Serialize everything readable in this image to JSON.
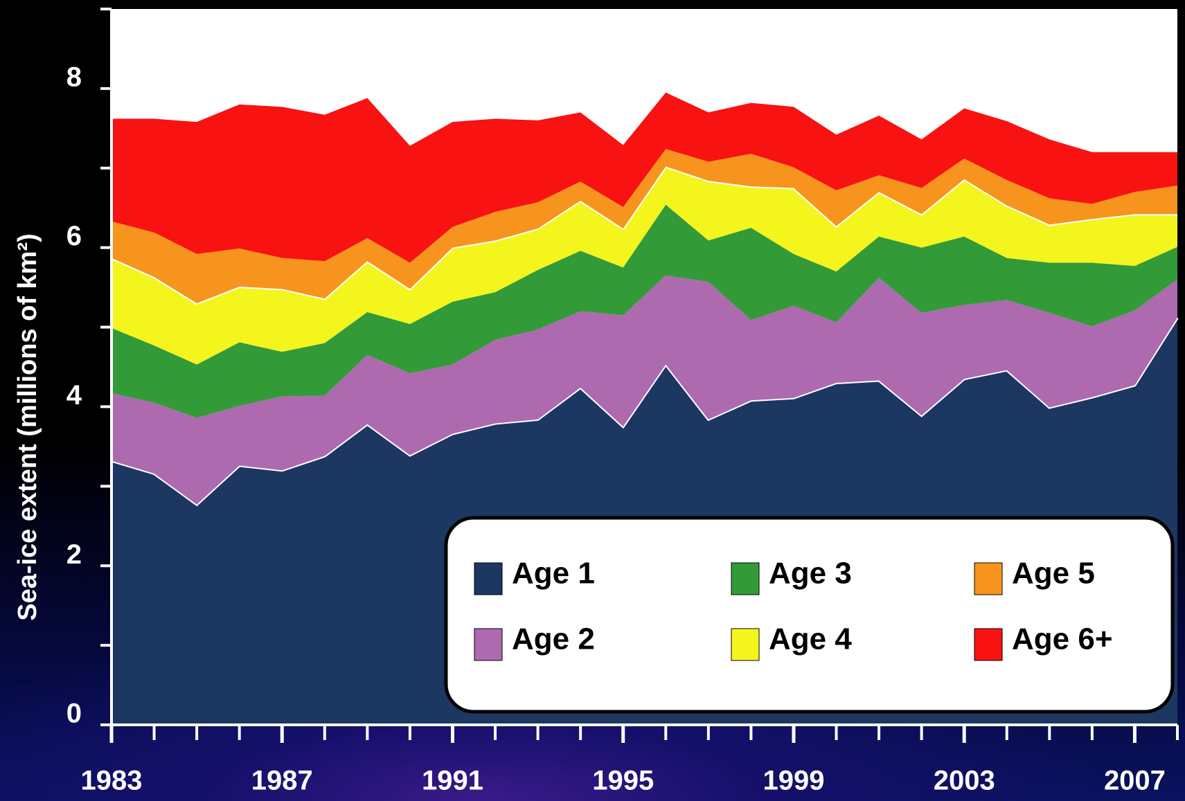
{
  "chart_data": {
    "type": "stacked-area",
    "y_label": "Sea-ice extent (millions of km²)",
    "x": [
      1983,
      1984,
      1985,
      1986,
      1987,
      1988,
      1989,
      1990,
      1991,
      1992,
      1993,
      1994,
      1995,
      1996,
      1997,
      1998,
      1999,
      2000,
      2001,
      2002,
      2003,
      2004,
      2005,
      2006,
      2007,
      2008
    ],
    "series": [
      {
        "name": "Age 1",
        "color": "#1c3761",
        "edge": "#ffffff",
        "values": [
          3.32,
          3.16,
          2.77,
          3.26,
          3.2,
          3.38,
          3.78,
          3.39,
          3.66,
          3.79,
          3.84,
          4.24,
          3.75,
          4.53,
          3.84,
          4.08,
          4.11,
          4.3,
          4.33,
          3.89,
          4.35,
          4.46,
          3.99,
          4.12,
          4.27,
          5.12
        ]
      },
      {
        "name": "Age 2",
        "color": "#ad6aaf",
        "values": [
          0.85,
          0.89,
          1.09,
          0.75,
          0.93,
          0.76,
          0.87,
          1.03,
          0.87,
          1.05,
          1.13,
          0.96,
          1.4,
          1.12,
          1.73,
          1.01,
          1.16,
          0.76,
          1.29,
          1.29,
          0.93,
          0.88,
          1.19,
          0.89,
          0.94,
          0.48
        ]
      },
      {
        "name": "Age 3",
        "color": "#339a38",
        "values": [
          0.82,
          0.72,
          0.67,
          0.8,
          0.56,
          0.66,
          0.54,
          0.62,
          0.79,
          0.6,
          0.75,
          0.76,
          0.6,
          0.89,
          0.52,
          1.16,
          0.65,
          0.64,
          0.52,
          0.82,
          0.86,
          0.53,
          0.63,
          0.8,
          0.56,
          0.41
        ]
      },
      {
        "name": "Age 4",
        "color": "#f5f51e",
        "edge": "#ffffff",
        "values": [
          0.88,
          0.86,
          0.77,
          0.7,
          0.79,
          0.56,
          0.64,
          0.44,
          0.68,
          0.65,
          0.52,
          0.63,
          0.49,
          0.48,
          0.75,
          0.52,
          0.83,
          0.57,
          0.56,
          0.42,
          0.72,
          0.66,
          0.48,
          0.55,
          0.65,
          0.41
        ]
      },
      {
        "name": "Age 5",
        "color": "#f7941d",
        "values": [
          0.46,
          0.56,
          0.62,
          0.48,
          0.39,
          0.47,
          0.29,
          0.33,
          0.26,
          0.36,
          0.33,
          0.24,
          0.27,
          0.22,
          0.24,
          0.41,
          0.26,
          0.45,
          0.21,
          0.33,
          0.26,
          0.32,
          0.33,
          0.19,
          0.28,
          0.36
        ]
      },
      {
        "name": "Age 6+",
        "color": "#f81212",
        "values": [
          1.29,
          1.43,
          1.66,
          1.81,
          1.9,
          1.84,
          1.76,
          1.47,
          1.32,
          1.17,
          1.03,
          0.87,
          0.78,
          0.71,
          0.62,
          0.64,
          0.76,
          0.7,
          0.75,
          0.61,
          0.63,
          0.74,
          0.74,
          0.65,
          0.5,
          0.42
        ]
      }
    ],
    "xlim": [
      1983,
      2008
    ],
    "xticks": [
      1983,
      1987,
      1991,
      1995,
      1999,
      2003,
      2007
    ],
    "ylim": [
      0,
      9
    ],
    "yticks": [
      0,
      2,
      4,
      6,
      8
    ],
    "yminor_ticks": [
      1,
      3,
      5,
      7,
      9
    ],
    "legend": "lower right"
  }
}
